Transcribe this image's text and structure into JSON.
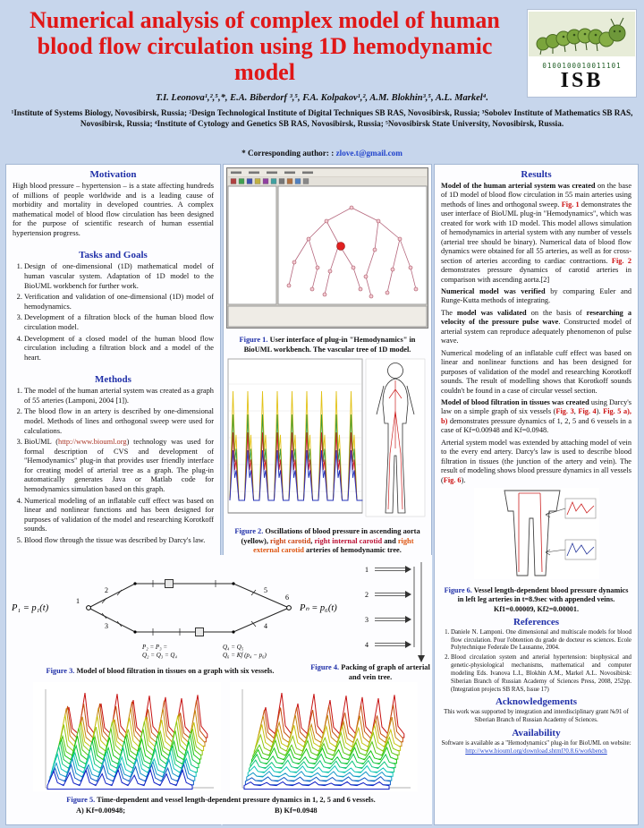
{
  "header": {
    "title": "Numerical analysis of complex model of human blood flow circulation using 1D hemodynamic model",
    "logo_binary": "0100100010011101",
    "logo_org": "ISB",
    "authors": "T.I. Leonova¹,²,⁵,*, E.A. Biberdorf ³,⁵, F.A. Kolpakov¹,², A.M. Blokhin³,⁵, A.L. Markel⁴.",
    "affiliations": "¹Institute of Systems Biology, Novosibirsk, Russia; ²Design Technological Institute of Digital Techniques SB RAS, Novosibirsk, Russia; ³Sobolev Institute of Mathematics SB RAS, Novosibirsk, Russia; ⁴Institute of Cytology and Genetics SB RAS, Novosibirsk, Russia; ⁵Novosibirsk State University, Novosibirsk, Russia.",
    "corresponding_label": "* Corresponding author: : ",
    "email": "zlove.t@gmail.com"
  },
  "motivation": {
    "title": "Motivation",
    "body": "High blood pressure – hypertension – is a state affecting hundreds of millions of people worldwide and is a leading cause of morbidity and mortality in developed countries. A complex mathematical model of blood flow circulation has been designed for the purpose of scientific research of human essential hypertension progress."
  },
  "tasks": {
    "title": "Tasks and Goals",
    "items": [
      "Design of one-dimensional (1D) mathematical model of human vascular system. Adaptation of 1D model to the BioUML workbench for further work.",
      "Verification and validation of one-dimensional (1D) model of hemodynamics.",
      "Development of a filtration block of the human blood flow circulation model.",
      "Development of a closed model of the human blood flow circulation including a filtration block and a model of the heart."
    ]
  },
  "methods": {
    "title": "Methods",
    "items": [
      [
        {
          "t": "The model of the human arterial system was created as a graph of 55 arteries (Lamponi, 2004 [1])."
        }
      ],
      [
        {
          "t": "The blood flow in an artery is described by one-dimensional model. Methods of lines and orthogonal sweep were used for calculations."
        }
      ],
      [
        {
          "t": "BioUML ("
        },
        {
          "t": "http://www.biouml.org",
          "c": "#aa3322"
        },
        {
          "t": ") technology was used for formal description of CVS and development of \"Hemodynamics\" plug-in that provides user friendly interface for creating model of arterial tree as a graph. The plug-in automatically generates Java or Matlab code for hemodynamics simulation based on this graph."
        }
      ],
      [
        {
          "t": "Numerical modeling of an inflatable cuff effect was based on linear and nonlinear functions and has been designed for purposes of validation of the model and researching Korotkoff sounds."
        }
      ],
      [
        {
          "t": "Blood flow through the tissue was described by Darcy's law."
        }
      ]
    ]
  },
  "results": {
    "title": "Results",
    "paragraphs": [
      [
        {
          "t": "Model of the human arterial system was created",
          "b": true
        },
        {
          "t": " on the base of 1D model of blood flow circulation in 55 main arteries using methods of lines and orthogonal sweep. "
        },
        {
          "t": "Fig. 1",
          "b": true,
          "c": "#cc1111"
        },
        {
          "t": " demonstrates the user interface of BioUML plug-in \"Hemodynamics\", which was created for work with 1D model. This model allows simulation of hemodynamics in arterial system with any number of vessels (arterial tree should be binary). Numerical data of blood flow dynamics were obtained for all 55 arteries, as well as for cross-section of arteries according to cardiac contractions. "
        },
        {
          "t": "Fig. 2",
          "b": true,
          "c": "#cc1111"
        },
        {
          "t": " demonstrates pressure dynamics of carotid arteries in comparison with ascending aorta.[2]"
        }
      ],
      [
        {
          "t": "Numerical model was verified",
          "b": true
        },
        {
          "t": " by comparing Euler and Runge-Kutta methods of integrating."
        }
      ],
      [
        {
          "t": "The "
        },
        {
          "t": "model was validated",
          "b": true
        },
        {
          "t": " on the basis of "
        },
        {
          "t": "researching a velocity of the pressure pulse wave",
          "b": true
        },
        {
          "t": ". Constructed model of arterial system can reproduce adequately phenomenon of pulse wave."
        }
      ],
      [
        {
          "t": "Numerical modeling of an inflatable cuff effect was based on linear and nonlinear functions and has been designed for purposes of validation of the model and researching Korotkoff sounds. The result of modelling shows that Korotkoff sounds couldn't be found in a case of circular vessel section."
        }
      ],
      [
        {
          "t": "Model of blood filtration in tissues was created",
          "b": true
        },
        {
          "t": " using Darcy's law on a simple graph of six vessels ("
        },
        {
          "t": "Fig. 3",
          "b": true,
          "c": "#cc1111"
        },
        {
          "t": ", "
        },
        {
          "t": "Fig. 4",
          "b": true,
          "c": "#cc1111"
        },
        {
          "t": "). "
        },
        {
          "t": "Fig. 5 a), b)",
          "b": true,
          "c": "#cc1111"
        },
        {
          "t": " demonstrates pressure dynamics of 1, 2, 5 and 6 vessels in a case of Kf=0.00948 and Kf=0.0948."
        }
      ],
      [
        {
          "t": "Arterial system model was extended by attaching model of vein to the every end artery. Darcy's law is used to describe blood filtration in tissues (the junction of the artery and vein). The result of modeling shows blood pressure dynamics in all vessels ("
        },
        {
          "t": "Fig. 6",
          "b": true,
          "c": "#cc1111"
        },
        {
          "t": ")."
        }
      ]
    ]
  },
  "figures": {
    "fig1": {
      "label": "Figure 1.",
      "caption": " User interface of plug-in \"Hemodynamics\" in BioUML workbench. The vascular tree of 1D model."
    },
    "fig2": {
      "series_colors": [
        "#e2c216",
        "#3a9a3a",
        "#cc2222",
        "#2233bb"
      ],
      "caption_rich": [
        {
          "t": "Figure 2.",
          "b": true,
          "c": "#2030a8"
        },
        {
          "t": " Oscillations of blood pressure in ascending aorta (yellow), ",
          "b": true
        },
        {
          "t": "right carotid",
          "b": true,
          "c": "#cc4411"
        },
        {
          "t": ", ",
          "b": true
        },
        {
          "t": "right internal carotid",
          "b": true,
          "c": "#bb1133"
        },
        {
          "t": " and ",
          "b": true
        },
        {
          "t": "right external carotid",
          "b": true,
          "c": "#dd5511"
        },
        {
          "t": " arteries of hemodynamic tree.",
          "b": true
        }
      ]
    },
    "fig3": {
      "label": "Figure 3.",
      "caption": " Model of blood filtration in tissues on a graph with six vessels.",
      "eq_left": "P₁ = p₁(t)",
      "eq_right": "Pₙ = p₆(t)",
      "eq_mid1": "P₂ = P₃ =",
      "eq_mid2": "Q₂ = Q₃ = Q₄",
      "eq_mid3": "Q₄ = Q₅",
      "eq_mid4": "Q₆ = Kf (p₄ − p₆)",
      "node_labels": [
        "1",
        "2",
        "3",
        "4",
        "5",
        "6"
      ]
    },
    "fig4": {
      "label": "Figure 4.",
      "caption": " Packing of  graph of arterial and vein tree.",
      "row_labels": [
        "1",
        "2",
        "3",
        "4"
      ]
    },
    "fig5": {
      "label": "Figure 5.",
      "caption": " Time-dependent and vessel length-dependent pressure dynamics in 1, 2, 5 and 6 vessels.",
      "a_label": "A) Kf=0.00948;",
      "b_label": "B) Kf=0.0948"
    },
    "fig6": {
      "label": "Figure 6.",
      "caption": " Vessel length-dependent blood pressure dynamics in left leg arteries in t=8.9sec with appended veins. Kf1=0.00009, Kf2=0.00001."
    }
  },
  "references": {
    "title": "References",
    "items": [
      "Daniele N. Lamponi. One dimensional and multiscale models for blood flow circulation. Pour l'obtention du grade de docteur es sciences. Ecole Polytechnique Federale De Lausanne, 2004.",
      "Blood circulation system and arterial hypertension: biophysical and genetic-physiological mechanisms, mathematical and computer modeling Eds. Ivanova L.I., Blokhin A.M., Markel A.L. Novosibirsk: Siberian Branch of Russian Academy of Sciences Press, 2008, 252pp. (Integration projects SB RAS, Issue 17)"
    ]
  },
  "acknowledgements": {
    "title": "Acknowledgements",
    "body": "This work was supported by integration and interdisciplinary grant №91 of Siberian Branch of Russian Academy of Sciences."
  },
  "availability": {
    "title": "Availability",
    "body": "Software is available as a \"Hemodynamics\" plug-in for BioUML on website:",
    "link": "http://www.biouml.org/download.shtml?0.8.6/workbench"
  }
}
